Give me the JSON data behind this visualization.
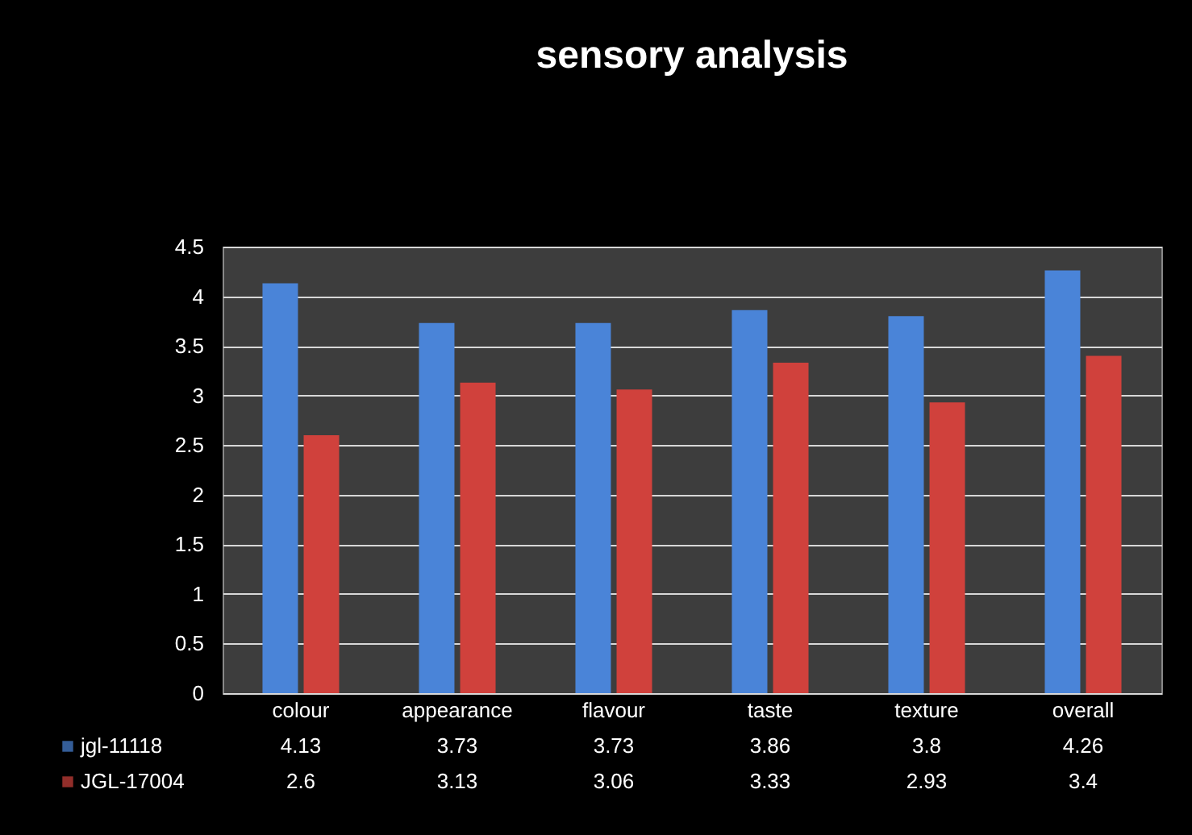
{
  "chart_data": {
    "type": "bar",
    "title": "sensory  analysis",
    "categories": [
      "colour",
      "appearance",
      "flavour",
      "taste",
      "texture",
      "overall"
    ],
    "series": [
      {
        "name": "jgl-11118",
        "color": "#4a84d8",
        "values": [
          4.13,
          3.73,
          3.73,
          3.86,
          3.8,
          4.26
        ]
      },
      {
        "name": "JGL-17004",
        "color": "#d0413c",
        "values": [
          2.6,
          3.13,
          3.06,
          3.33,
          2.93,
          3.4
        ]
      }
    ],
    "ylim": [
      0,
      4.5
    ],
    "yticks": [
      0,
      0.5,
      1,
      1.5,
      2,
      2.5,
      3,
      3.5,
      4,
      4.5
    ],
    "grid": "y",
    "legend": "bottom",
    "data_labels": true
  }
}
